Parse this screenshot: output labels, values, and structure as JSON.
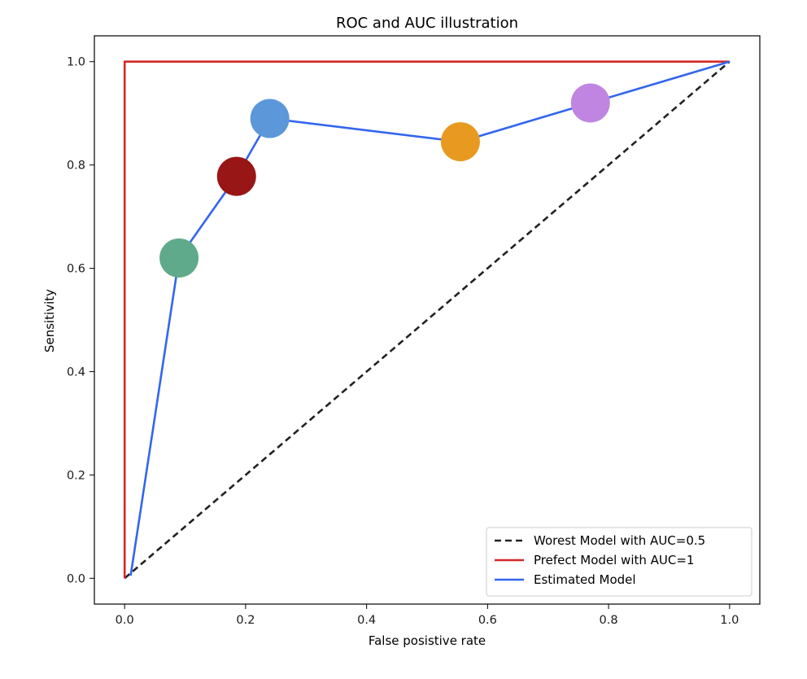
{
  "chart_data": {
    "type": "line",
    "title": "ROC and AUC illustration",
    "xlabel": "False posistive rate",
    "ylabel": "Sensitivity",
    "xlim": [
      -0.05,
      1.05
    ],
    "ylim": [
      -0.05,
      1.05
    ],
    "x_ticks": [
      0.0,
      0.2,
      0.4,
      0.6,
      0.8,
      1.0
    ],
    "y_ticks": [
      0.0,
      0.2,
      0.4,
      0.6,
      0.8,
      1.0
    ],
    "tick_labels": [
      "0.0",
      "0.2",
      "0.4",
      "0.6",
      "0.8",
      "1.0"
    ],
    "grid": false,
    "legend_position": "lower-right",
    "series": [
      {
        "name": "Worest Model with AUC=0.5",
        "style": "dashed",
        "color": "#222222",
        "x": [
          0,
          1
        ],
        "y": [
          0,
          1
        ]
      },
      {
        "name": "Prefect Model with AUC=1",
        "style": "solid",
        "color": "#d62728",
        "x": [
          0,
          0,
          1
        ],
        "y": [
          0,
          1,
          1
        ]
      },
      {
        "name": "Estimated Model",
        "style": "solid",
        "color": "#3366ee",
        "x": [
          0.01,
          0.09,
          0.185,
          0.24,
          0.555,
          0.77,
          1.0
        ],
        "y": [
          0.005,
          0.62,
          0.778,
          0.89,
          0.845,
          0.92,
          1.0
        ]
      }
    ],
    "markers": [
      {
        "x": 0.09,
        "y": 0.62,
        "color": "#5faa8a"
      },
      {
        "x": 0.185,
        "y": 0.778,
        "color": "#991616"
      },
      {
        "x": 0.24,
        "y": 0.89,
        "color": "#5b97d9"
      },
      {
        "x": 0.555,
        "y": 0.845,
        "color": "#e89a20"
      },
      {
        "x": 0.77,
        "y": 0.92,
        "color": "#c085e0"
      }
    ]
  }
}
